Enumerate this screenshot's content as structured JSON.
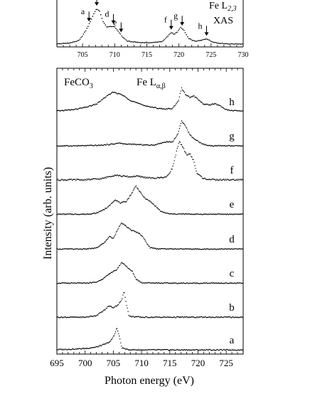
{
  "chart_data": [
    {
      "type": "scatter",
      "title": "",
      "annotation_label": "Fe L",
      "annotation_sub": "2,3",
      "annotation_label_2": "XAS",
      "xlabel": "",
      "ylabel": "",
      "xlim": [
        701,
        730
      ],
      "xticks": [
        "705",
        "710",
        "715",
        "720",
        "725",
        "730"
      ],
      "grid": false,
      "markers": [
        {
          "label": "a",
          "x": 706.0
        },
        {
          "label": "c",
          "x": 707.2
        },
        {
          "label": "d",
          "x": 709.8
        },
        {
          "label": "e",
          "x": 711.0
        },
        {
          "label": "f",
          "x": 718.8
        },
        {
          "label": "g",
          "x": 720.5
        },
        {
          "label": "h",
          "x": 724.3
        }
      ],
      "series": [
        {
          "values": [
            [
              701,
              0.02
            ],
            [
              703,
              0.04
            ],
            [
              704.5,
              0.1
            ],
            [
              705.5,
              0.32
            ],
            [
              706.3,
              0.55
            ],
            [
              706.8,
              0.72
            ],
            [
              707.2,
              0.82
            ],
            [
              707.7,
              0.75
            ],
            [
              708.2,
              0.52
            ],
            [
              708.8,
              0.4
            ],
            [
              709.5,
              0.42
            ],
            [
              710.0,
              0.4
            ],
            [
              710.6,
              0.3
            ],
            [
              711.2,
              0.18
            ],
            [
              712,
              0.08
            ],
            [
              714,
              0.05
            ],
            [
              716,
              0.05
            ],
            [
              717.5,
              0.08
            ],
            [
              718.3,
              0.2
            ],
            [
              718.8,
              0.28
            ],
            [
              719.3,
              0.24
            ],
            [
              719.8,
              0.3
            ],
            [
              720.3,
              0.4
            ],
            [
              720.8,
              0.32
            ],
            [
              721.5,
              0.14
            ],
            [
              722.5,
              0.08
            ],
            [
              723.5,
              0.1
            ],
            [
              724.3,
              0.14
            ],
            [
              725,
              0.08
            ],
            [
              726,
              0.04
            ],
            [
              728,
              0.02
            ],
            [
              730,
              0.02
            ]
          ]
        }
      ]
    },
    {
      "type": "line",
      "title": "",
      "sample_label": "FeCO",
      "sample_sub": "3",
      "emission_label": "Fe L",
      "emission_sub": "α,β",
      "xlabel": "Photon energy (eV)",
      "ylabel": "Intensity (arb. units)",
      "xlim": [
        695,
        728
      ],
      "xticks": [
        "695",
        "700",
        "705",
        "710",
        "715",
        "720",
        "725"
      ],
      "grid": false,
      "series": [
        {
          "name": "a",
          "values": [
            [
              695,
              0.03
            ],
            [
              698,
              0.05
            ],
            [
              700,
              0.07
            ],
            [
              702,
              0.12
            ],
            [
              703.5,
              0.22
            ],
            [
              704.5,
              0.32
            ],
            [
              705.2,
              0.55
            ],
            [
              705.6,
              0.8
            ],
            [
              706.0,
              0.55
            ],
            [
              706.5,
              0.1
            ],
            [
              707.5,
              0.03
            ],
            [
              710,
              0.02
            ],
            [
              715,
              0.02
            ],
            [
              720,
              0.02
            ],
            [
              725,
              0.02
            ],
            [
              728,
              0.02
            ]
          ]
        },
        {
          "name": "b",
          "values": [
            [
              695,
              0.02
            ],
            [
              700,
              0.02
            ],
            [
              702,
              0.08
            ],
            [
              703.5,
              0.28
            ],
            [
              704.2,
              0.42
            ],
            [
              705.0,
              0.36
            ],
            [
              705.8,
              0.45
            ],
            [
              706.5,
              0.62
            ],
            [
              706.9,
              0.95
            ],
            [
              707.3,
              0.5
            ],
            [
              707.8,
              0.05
            ],
            [
              710,
              0.02
            ],
            [
              715,
              0.02
            ],
            [
              720,
              0.02
            ],
            [
              728,
              0.02
            ]
          ]
        },
        {
          "name": "c",
          "values": [
            [
              695,
              0.02
            ],
            [
              700,
              0.02
            ],
            [
              702,
              0.06
            ],
            [
              703.5,
              0.25
            ],
            [
              704.5,
              0.45
            ],
            [
              705.5,
              0.55
            ],
            [
              706.5,
              0.88
            ],
            [
              707.2,
              0.75
            ],
            [
              707.8,
              0.6
            ],
            [
              708.4,
              0.5
            ],
            [
              709.0,
              0.2
            ],
            [
              710,
              0.04
            ],
            [
              715,
              0.02
            ],
            [
              720,
              0.02
            ],
            [
              728,
              0.02
            ]
          ]
        },
        {
          "name": "d",
          "values": [
            [
              695,
              0.02
            ],
            [
              700,
              0.02
            ],
            [
              702,
              0.06
            ],
            [
              703.5,
              0.3
            ],
            [
              704.3,
              0.55
            ],
            [
              705.0,
              0.45
            ],
            [
              705.8,
              0.85
            ],
            [
              706.5,
              1.1
            ],
            [
              707.3,
              0.95
            ],
            [
              708.2,
              0.8
            ],
            [
              709.5,
              0.68
            ],
            [
              710.2,
              0.55
            ],
            [
              710.8,
              0.3
            ],
            [
              711.5,
              0.08
            ],
            [
              713,
              0.03
            ],
            [
              720,
              0.02
            ],
            [
              728,
              0.02
            ]
          ]
        },
        {
          "name": "e",
          "values": [
            [
              695,
              0.02
            ],
            [
              700,
              0.02
            ],
            [
              702,
              0.06
            ],
            [
              704,
              0.3
            ],
            [
              705.3,
              0.62
            ],
            [
              706.3,
              0.48
            ],
            [
              707.3,
              0.55
            ],
            [
              708.3,
              0.9
            ],
            [
              709.0,
              1.2
            ],
            [
              709.7,
              0.95
            ],
            [
              710.5,
              0.7
            ],
            [
              711.5,
              0.55
            ],
            [
              712.5,
              0.35
            ],
            [
              713.5,
              0.12
            ],
            [
              715,
              0.03
            ],
            [
              720,
              0.02
            ],
            [
              728,
              0.02
            ]
          ]
        },
        {
          "name": "f",
          "values": [
            [
              695,
              0.02
            ],
            [
              700,
              0.02
            ],
            [
              703,
              0.05
            ],
            [
              704.5,
              0.12
            ],
            [
              705.5,
              0.15
            ],
            [
              706.5,
              0.12
            ],
            [
              708,
              0.1
            ],
            [
              709,
              0.12
            ],
            [
              712,
              0.06
            ],
            [
              714.5,
              0.1
            ],
            [
              715.5,
              0.35
            ],
            [
              716.2,
              0.8
            ],
            [
              716.7,
              1.05
            ],
            [
              717.3,
              0.9
            ],
            [
              718.0,
              0.7
            ],
            [
              718.6,
              0.72
            ],
            [
              719.2,
              0.55
            ],
            [
              719.8,
              0.2
            ],
            [
              721,
              0.05
            ],
            [
              723,
              0.02
            ],
            [
              728,
              0.02
            ]
          ]
        },
        {
          "name": "g",
          "values": [
            [
              695,
              0.02
            ],
            [
              700,
              0.03
            ],
            [
              703,
              0.05
            ],
            [
              705,
              0.1
            ],
            [
              706,
              0.14
            ],
            [
              707,
              0.1
            ],
            [
              709,
              0.08
            ],
            [
              712,
              0.05
            ],
            [
              714.5,
              0.2
            ],
            [
              715.5,
              0.18
            ],
            [
              716.5,
              0.55
            ],
            [
              717.1,
              1.05
            ],
            [
              717.7,
              0.9
            ],
            [
              718.5,
              0.5
            ],
            [
              719.3,
              0.32
            ],
            [
              720.0,
              0.22
            ],
            [
              720.8,
              0.1
            ],
            [
              722,
              0.03
            ],
            [
              728,
              0.02
            ]
          ]
        },
        {
          "name": "h",
          "values": [
            [
              695,
              0.05
            ],
            [
              698,
              0.1
            ],
            [
              700,
              0.18
            ],
            [
              702,
              0.3
            ],
            [
              703.5,
              0.55
            ],
            [
              705,
              0.75
            ],
            [
              706.5,
              0.65
            ],
            [
              708,
              0.45
            ],
            [
              710,
              0.28
            ],
            [
              712,
              0.18
            ],
            [
              714,
              0.12
            ],
            [
              715.5,
              0.15
            ],
            [
              716.5,
              0.4
            ],
            [
              717.1,
              0.9
            ],
            [
              717.8,
              0.65
            ],
            [
              718.6,
              0.55
            ],
            [
              719.3,
              0.6
            ],
            [
              720.0,
              0.48
            ],
            [
              721,
              0.3
            ],
            [
              722.2,
              0.28
            ],
            [
              723.0,
              0.32
            ],
            [
              723.8,
              0.25
            ],
            [
              725,
              0.1
            ],
            [
              726,
              0.06
            ],
            [
              728,
              0.05
            ]
          ]
        }
      ]
    }
  ]
}
